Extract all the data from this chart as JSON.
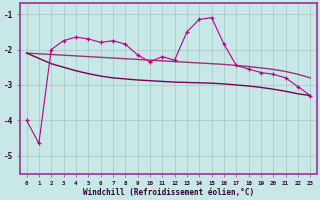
{
  "xlabel": "Windchill (Refroidissement éolien,°C)",
  "x": [
    0,
    1,
    2,
    3,
    4,
    5,
    6,
    7,
    8,
    9,
    10,
    11,
    12,
    13,
    14,
    15,
    16,
    17,
    18,
    19,
    20,
    21,
    22,
    23
  ],
  "windchill": [
    -4.0,
    -4.65,
    -2.0,
    -1.75,
    -1.65,
    -1.7,
    -1.8,
    -1.75,
    -1.85,
    -2.15,
    -2.35,
    -2.2,
    -2.3,
    -1.5,
    -1.15,
    -1.1,
    -1.85,
    -2.45,
    -2.55,
    -2.65,
    -2.7,
    -2.8,
    -3.05,
    -3.3
  ],
  "line_upper": [
    -2.1,
    -2.12,
    -2.14,
    -2.16,
    -2.18,
    -2.2,
    -2.22,
    -2.24,
    -2.26,
    -2.28,
    -2.3,
    -2.32,
    -2.34,
    -2.36,
    -2.38,
    -2.4,
    -2.42,
    -2.45,
    -2.48,
    -2.52,
    -2.56,
    -2.62,
    -2.7,
    -2.8
  ],
  "line_lower": [
    -2.1,
    -2.25,
    -2.4,
    -2.5,
    -2.6,
    -2.68,
    -2.75,
    -2.8,
    -2.83,
    -2.86,
    -2.88,
    -2.9,
    -2.92,
    -2.93,
    -2.94,
    -2.95,
    -2.97,
    -3.0,
    -3.03,
    -3.07,
    -3.12,
    -3.18,
    -3.25,
    -3.3
  ],
  "color_main": "#BB0088",
  "color_upper": "#993377",
  "color_lower": "#770055",
  "bg_color": "#C8E8E8",
  "grid_color": "#AACCCC",
  "border_color": "#993399",
  "ylim": [
    -5.5,
    -0.7
  ],
  "xlim": [
    -0.5,
    23.5
  ]
}
